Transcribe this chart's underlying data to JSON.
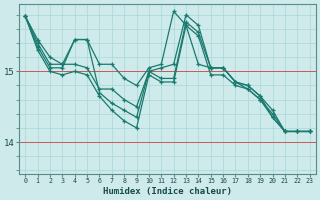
{
  "xlabel": "Humidex (Indice chaleur)",
  "bg_color": "#ceeaea",
  "line_color": "#1a7a6e",
  "grid_color": "#a8d8d8",
  "red_line_color": "#cc4444",
  "xlim": [
    -0.5,
    23.5
  ],
  "ylim": [
    13.55,
    15.95
  ],
  "yticks": [
    14,
    15
  ],
  "xticks": [
    0,
    1,
    2,
    3,
    4,
    5,
    6,
    7,
    8,
    9,
    10,
    11,
    12,
    13,
    14,
    15,
    16,
    17,
    18,
    19,
    20,
    21,
    22,
    23
  ],
  "series": [
    [
      15.78,
      15.45,
      15.2,
      15.1,
      15.45,
      15.45,
      15.1,
      15.1,
      14.9,
      14.8,
      15.05,
      15.1,
      15.85,
      15.65,
      15.1,
      15.05,
      15.05,
      14.85,
      14.8,
      14.65,
      14.35,
      14.15,
      14.15,
      14.15
    ],
    [
      15.78,
      15.4,
      15.1,
      15.1,
      15.1,
      15.05,
      14.75,
      14.75,
      14.6,
      14.5,
      15.0,
      15.05,
      15.1,
      15.8,
      15.65,
      15.05,
      15.05,
      14.85,
      14.75,
      14.6,
      14.35,
      14.15,
      14.15,
      14.15
    ],
    [
      15.78,
      15.35,
      15.05,
      15.05,
      15.45,
      15.45,
      14.7,
      14.55,
      14.45,
      14.35,
      15.0,
      14.9,
      14.9,
      15.7,
      15.55,
      15.05,
      15.05,
      14.85,
      14.8,
      14.65,
      14.45,
      14.15,
      14.15,
      14.15
    ],
    [
      15.78,
      15.3,
      15.0,
      14.95,
      15.0,
      14.95,
      14.65,
      14.45,
      14.3,
      14.2,
      14.95,
      14.85,
      14.85,
      15.65,
      15.5,
      14.95,
      14.95,
      14.8,
      14.75,
      14.6,
      14.4,
      14.15,
      14.15,
      14.15
    ]
  ]
}
